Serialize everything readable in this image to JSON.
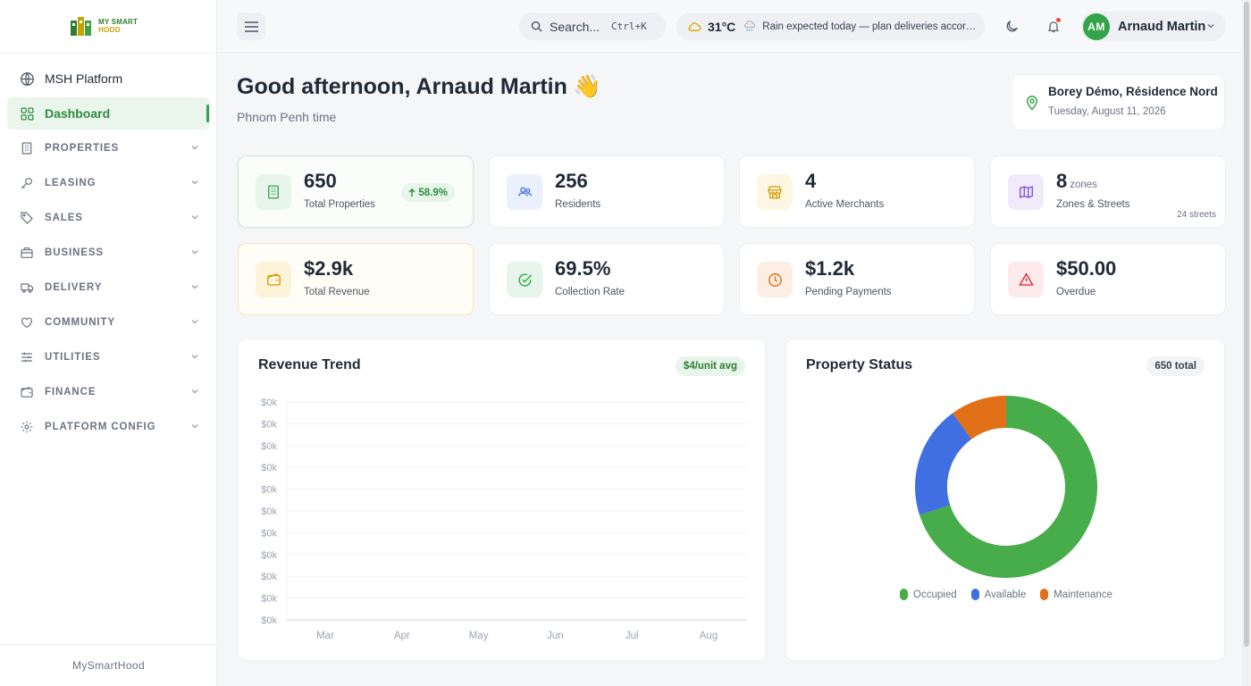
{
  "brand": {
    "logo_line1": "MY SMART",
    "logo_line2": "HOOD",
    "footer": "MySmartHood"
  },
  "sidebar": {
    "items": [
      {
        "label": "MSH Platform",
        "icon": "globe-icon",
        "group": false,
        "active": false
      },
      {
        "label": "Dashboard",
        "icon": "grid-icon",
        "group": false,
        "active": true
      },
      {
        "label": "PROPERTIES",
        "icon": "building-icon",
        "group": true,
        "active": false
      },
      {
        "label": "LEASING",
        "icon": "key-icon",
        "group": true,
        "active": false
      },
      {
        "label": "SALES",
        "icon": "tag-icon",
        "group": true,
        "active": false
      },
      {
        "label": "BUSINESS",
        "icon": "briefcase-icon",
        "group": true,
        "active": false
      },
      {
        "label": "DELIVERY",
        "icon": "truck-icon",
        "group": true,
        "active": false
      },
      {
        "label": "COMMUNITY",
        "icon": "heart-icon",
        "group": true,
        "active": false
      },
      {
        "label": "UTILITIES",
        "icon": "sliders-icon",
        "group": true,
        "active": false
      },
      {
        "label": "FINANCE",
        "icon": "wallet-icon",
        "group": true,
        "active": false
      },
      {
        "label": "PLATFORM CONFIG",
        "icon": "gear-icon",
        "group": true,
        "active": false
      }
    ]
  },
  "topbar": {
    "search_label": "Search...",
    "search_shortcut": "Ctrl+K",
    "temperature": "31°C",
    "weather_message": "Rain expected today — plan deliveries accordingly",
    "user_initials": "AM",
    "user_name": "Arnaud Martin"
  },
  "greeting": {
    "title": "Good afternoon, Arnaud Martin 👋",
    "subtitle": "Phnom Penh time"
  },
  "location": {
    "name": "Borey Démo, Résidence Nord",
    "date": "Tuesday, August 11, 2026"
  },
  "stats": [
    {
      "value": "650",
      "unit": "",
      "label": "Total Properties",
      "badge": "58.9%",
      "extra": ""
    },
    {
      "value": "256",
      "unit": "",
      "label": "Residents",
      "badge": "",
      "extra": ""
    },
    {
      "value": "4",
      "unit": "",
      "label": "Active Merchants",
      "badge": "",
      "extra": ""
    },
    {
      "value": "8",
      "unit": "zones",
      "label": "Zones & Streets",
      "badge": "",
      "extra": "24 streets"
    },
    {
      "value": "$2.9k",
      "unit": "",
      "label": "Total Revenue",
      "badge": "",
      "extra": ""
    },
    {
      "value": "69.5%",
      "unit": "",
      "label": "Collection Rate",
      "badge": "",
      "extra": ""
    },
    {
      "value": "$1.2k",
      "unit": "",
      "label": "Pending Payments",
      "badge": "",
      "extra": ""
    },
    {
      "value": "$50.00",
      "unit": "",
      "label": "Overdue",
      "badge": "",
      "extra": ""
    }
  ],
  "revenue_panel": {
    "title": "Revenue Trend",
    "pill": "$4/unit avg"
  },
  "property_panel": {
    "title": "Property Status",
    "pill": "650 total"
  },
  "colors": {
    "brand_green": "#35a34a",
    "occupied": "#46ad4a",
    "available": "#3f6fe0",
    "maintenance": "#e27019"
  },
  "chart_data": [
    {
      "type": "line",
      "title": "Revenue Trend",
      "categories": [
        "Mar",
        "Apr",
        "May",
        "Jun",
        "Jul",
        "Aug"
      ],
      "y_tick_labels": [
        "$0k",
        "$0k",
        "$0k",
        "$0k",
        "$0k",
        "$0k",
        "$0k",
        "$0k",
        "$0k",
        "$0k",
        "$0k"
      ],
      "series": [],
      "grid": true
    },
    {
      "type": "pie",
      "title": "Property Status",
      "donut": true,
      "labels": [
        "Occupied",
        "Available",
        "Maintenance"
      ],
      "values": [
        70,
        20,
        10
      ],
      "colors": [
        "#46ad4a",
        "#3f6fe0",
        "#e27019"
      ],
      "legend": "bottom"
    }
  ]
}
